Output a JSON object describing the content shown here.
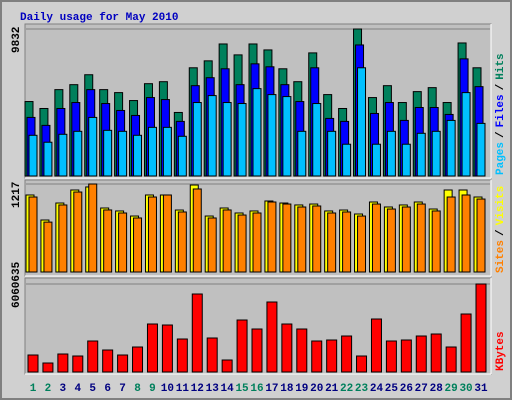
{
  "title": "Daily usage for May 2010",
  "legend_separator": "/",
  "chart_data": [
    {
      "type": "bar",
      "ylim": [
        0,
        9832
      ],
      "yticks": [
        9832
      ],
      "series": [
        {
          "name": "Hits",
          "color": "#00805c",
          "values": [
            4980,
            4515,
            5777,
            6109,
            6773,
            5777,
            5578,
            5046,
            6175,
            6308,
            4250,
            7238,
            7702,
            8831,
            8101,
            8831,
            8433,
            7171,
            6308,
            8234,
            5445,
            4515,
            9832,
            5246,
            6042,
            4914,
            5644,
            5910,
            4914,
            8898,
            7238
          ]
        },
        {
          "name": "Files",
          "color": "#0000ff",
          "values": [
            3918,
            3386,
            4515,
            4914,
            5777,
            4847,
            4383,
            4050,
            5246,
            5113,
            3652,
            6042,
            6574,
            7171,
            6109,
            7503,
            7304,
            6109,
            4980,
            7238,
            3851,
            3652,
            8765,
            4183,
            4914,
            3718,
            4582,
            4582,
            4117,
            7835,
            5976
          ]
        },
        {
          "name": "Pages",
          "color": "#00c0ff",
          "values": [
            2722,
            2258,
            2789,
            2988,
            3918,
            3054,
            2988,
            2722,
            3254,
            3254,
            2656,
            4914,
            5378,
            4914,
            4847,
            5843,
            5445,
            5312,
            2988,
            4847,
            2988,
            2125,
            7238,
            2125,
            2988,
            2125,
            2855,
            2988,
            3718,
            5578,
            3519
          ]
        }
      ]
    },
    {
      "type": "bar",
      "ylim": [
        0,
        1217
      ],
      "yticks": [
        1217
      ],
      "series": [
        {
          "name": "Visits",
          "color": "#ffff00",
          "values": [
            1065,
            719,
            954,
            1134,
            1176,
            885,
            844,
            774,
            1065,
            1065,
            857,
            1203,
            774,
            885,
            816,
            844,
            982,
            954,
            927,
            940,
            844,
            857,
            802,
            968,
            899,
            927,
            968,
            871,
            1134,
            1134,
            1037
          ]
        },
        {
          "name": "Sites",
          "color": "#ff8000",
          "values": [
            1037,
            690,
            927,
            1106,
            1217,
            858,
            816,
            747,
            1037,
            1065,
            830,
            1148,
            747,
            858,
            788,
            816,
            968,
            940,
            899,
            913,
            816,
            830,
            774,
            940,
            871,
            899,
            940,
            844,
            1037,
            1065,
            1009
          ]
        }
      ]
    },
    {
      "type": "bar",
      "ylim": [
        0,
        6060635
      ],
      "yticks": [
        6060635
      ],
      "categories": [
        "1",
        "2",
        "3",
        "4",
        "5",
        "6",
        "7",
        "8",
        "9",
        "10",
        "11",
        "12",
        "13",
        "14",
        "15",
        "16",
        "17",
        "18",
        "19",
        "20",
        "21",
        "22",
        "23",
        "24",
        "25",
        "26",
        "27",
        "28",
        "29",
        "30",
        "31"
      ],
      "category_colors": [
        "#00805c",
        "#00805c",
        "#000080",
        "#000080",
        "#000080",
        "#000080",
        "#000080",
        "#00805c",
        "#00805c",
        "#000080",
        "#000080",
        "#000080",
        "#000080",
        "#000080",
        "#00805c",
        "#00805c",
        "#000080",
        "#000080",
        "#000080",
        "#000080",
        "#000080",
        "#00805c",
        "#00805c",
        "#000080",
        "#000080",
        "#000080",
        "#000080",
        "#000080",
        "#00805c",
        "#00805c",
        "#000080"
      ],
      "series": [
        {
          "name": "KBytes",
          "color": "#ff0000",
          "values": [
            1170810,
            619839,
            1239678,
            1101936,
            2135001,
            1515162,
            1170810,
            1721775,
            3305808,
            3236937,
            2272743,
            5371938,
            2341614,
            826452,
            3581292,
            2961453,
            4820970,
            3305808,
            2961453,
            2135001,
            2203872,
            2479356,
            1101936,
            3650163,
            2135001,
            2203872,
            2479356,
            2617098,
            1721775,
            3994518,
            6060635
          ]
        }
      ]
    }
  ]
}
